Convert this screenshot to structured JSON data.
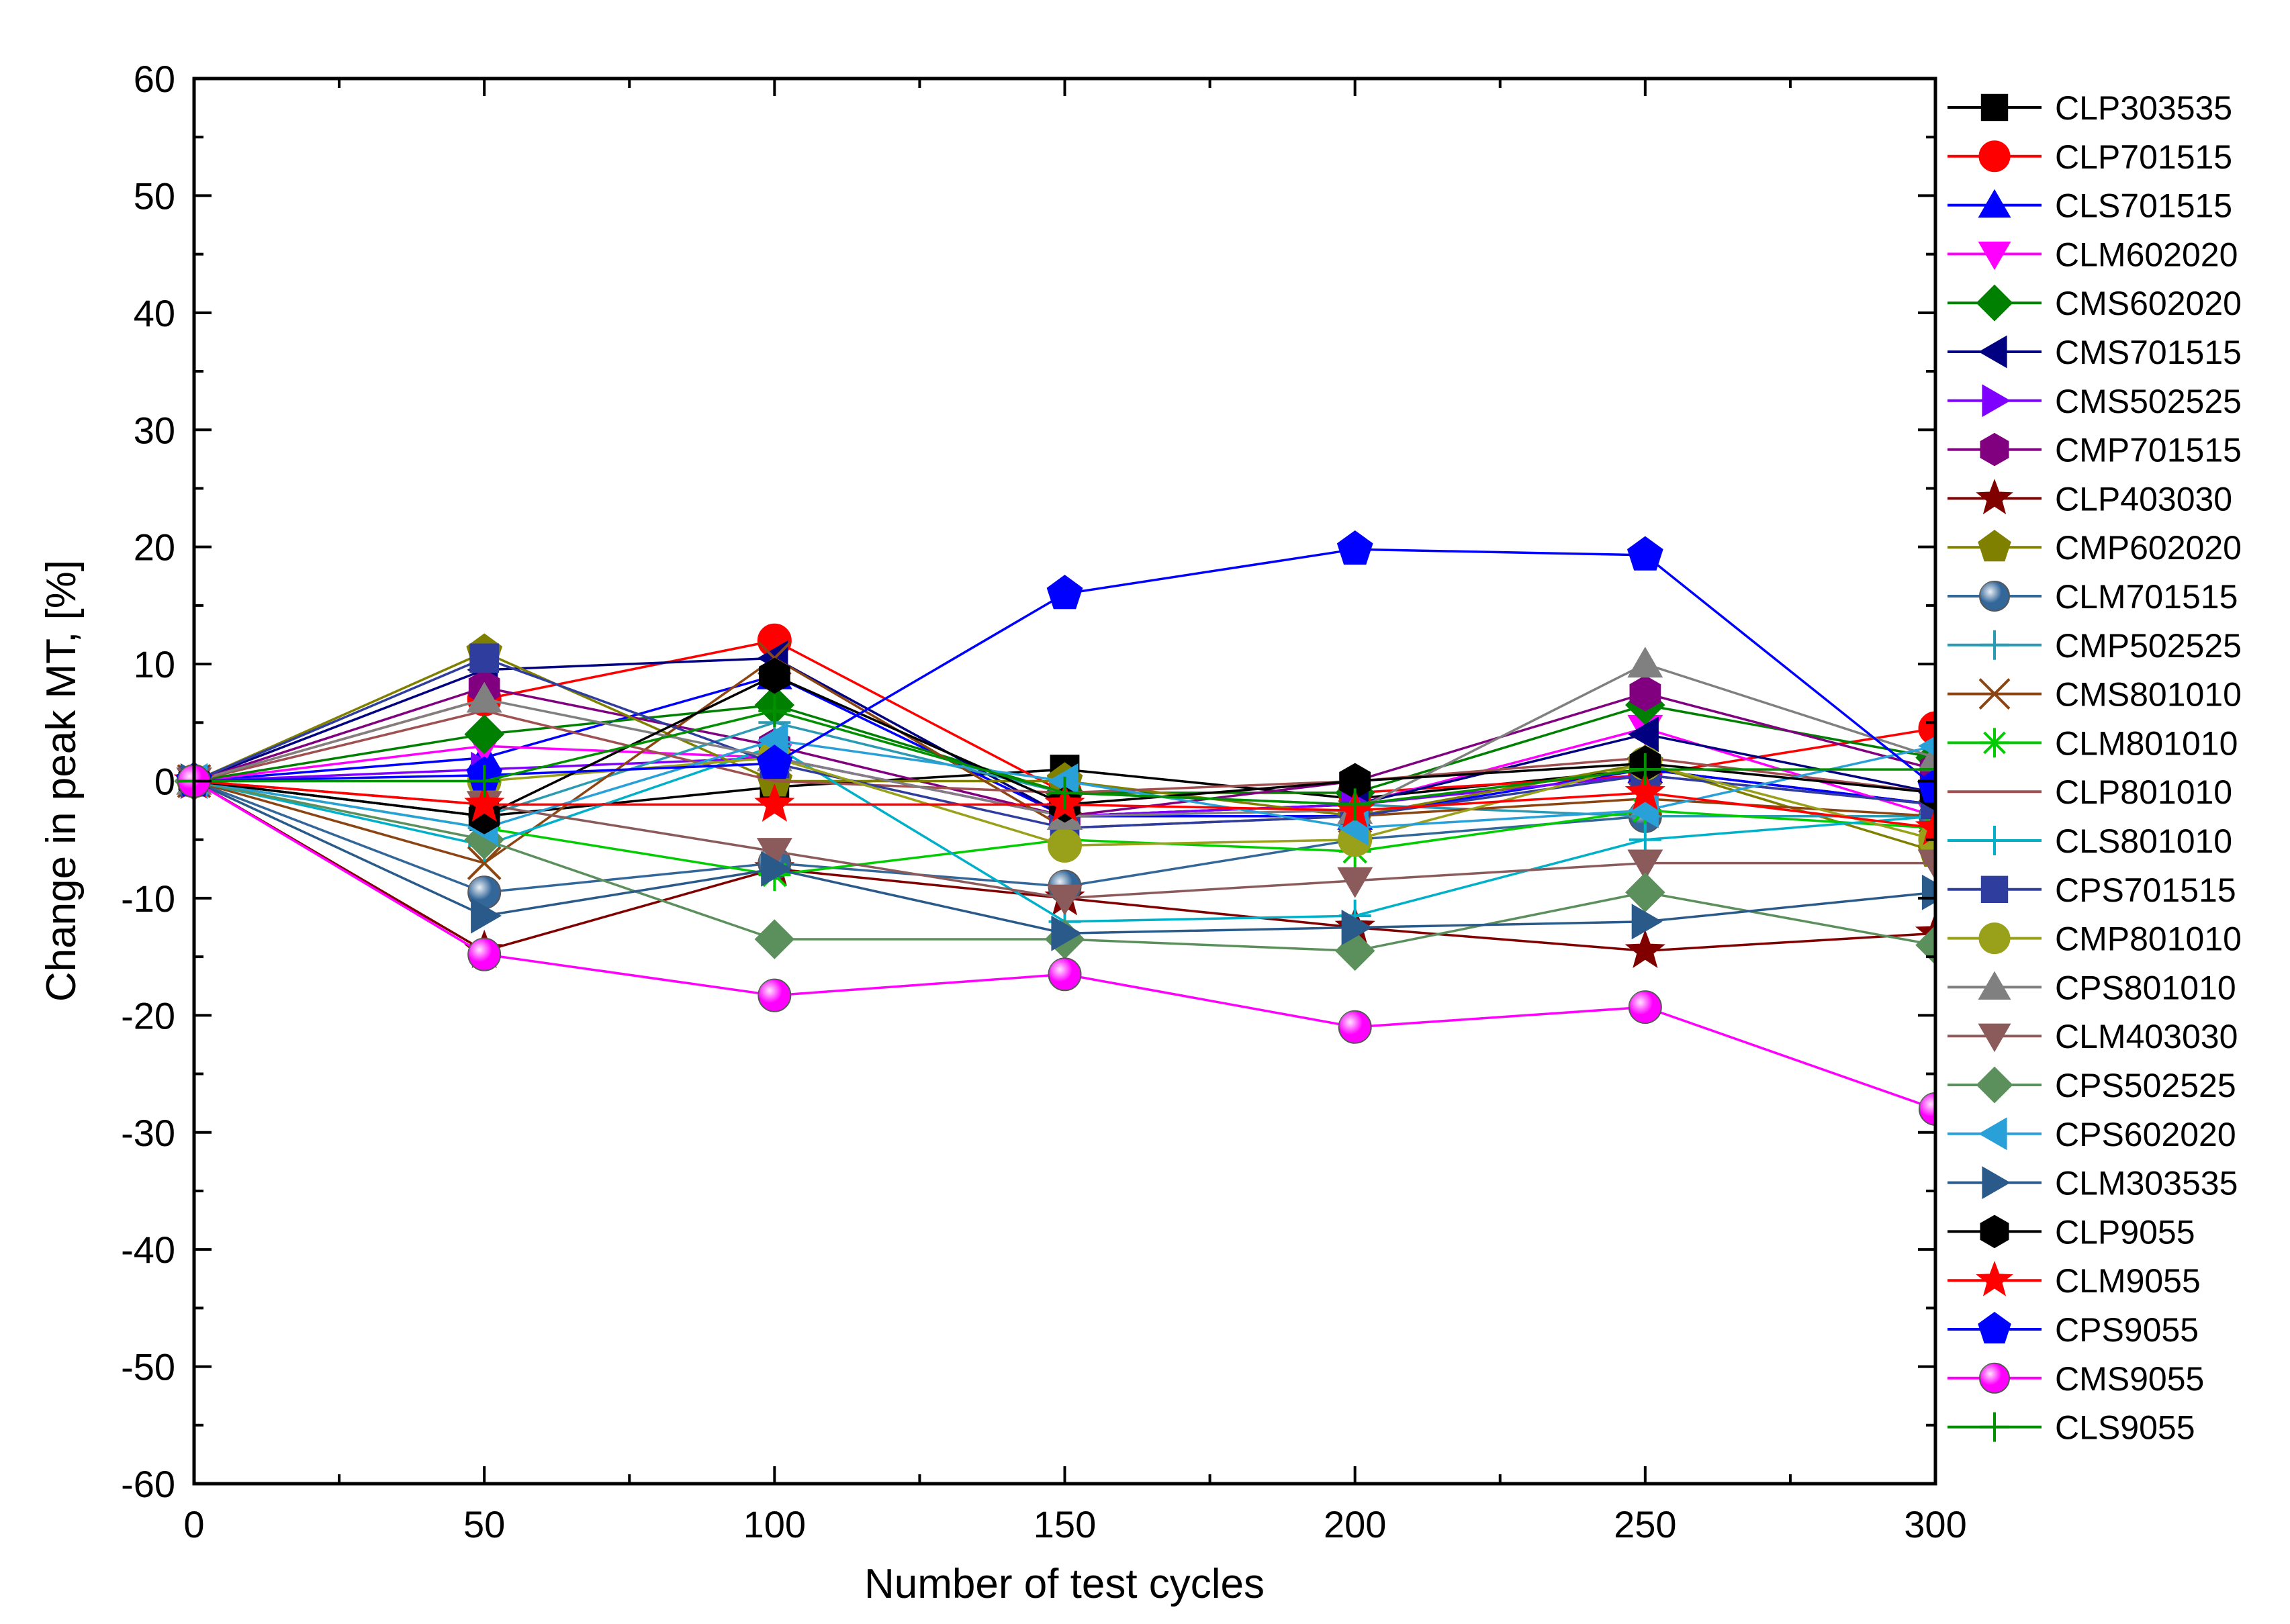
{
  "chart_data": {
    "type": "line",
    "title": "",
    "xlabel": "Number of test cycles",
    "ylabel": "Change in peak MT, [%]",
    "xlim": [
      0,
      300
    ],
    "ylim": [
      -60,
      60
    ],
    "xticks": [
      0,
      50,
      100,
      150,
      200,
      250,
      300
    ],
    "yticks": [
      -60,
      -50,
      -40,
      -30,
      -20,
      -10,
      0,
      10,
      20,
      30,
      40,
      50,
      60
    ],
    "x": [
      0,
      50,
      100,
      150,
      200,
      250,
      300
    ],
    "grid": false,
    "legend_position": "right",
    "series": [
      {
        "name": "CLP303535",
        "color": "#000000",
        "marker": "square",
        "values": [
          0,
          -3,
          -0.5,
          1,
          -1.5,
          1,
          -2
        ]
      },
      {
        "name": "CLP701515",
        "color": "#ff0000",
        "marker": "circle",
        "values": [
          0,
          7,
          12,
          -1,
          -1,
          0.5,
          4.5
        ]
      },
      {
        "name": "CLS701515",
        "color": "#0000ff",
        "marker": "triangle-up",
        "values": [
          0,
          2,
          9,
          -3,
          -3,
          1,
          -2
        ]
      },
      {
        "name": "CLM602020",
        "color": "#ff00ff",
        "marker": "triangle-down",
        "values": [
          0,
          3,
          2,
          -3,
          -2,
          4.5,
          -3
        ]
      },
      {
        "name": "CMS602020",
        "color": "#008000",
        "marker": "diamond",
        "values": [
          0,
          4,
          6.5,
          -1,
          -1,
          6.5,
          2
        ]
      },
      {
        "name": "CMS701515",
        "color": "#000080",
        "marker": "triangle-left",
        "values": [
          0,
          9.5,
          10.5,
          -3,
          -2,
          4,
          -1
        ]
      },
      {
        "name": "CMS502525",
        "color": "#8000ff",
        "marker": "triangle-right",
        "values": [
          0,
          1,
          2,
          -3,
          -2,
          0.5,
          -2
        ]
      },
      {
        "name": "CMP701515",
        "color": "#800080",
        "marker": "hexagon",
        "values": [
          0,
          8,
          3,
          -3,
          0,
          7.5,
          1
        ]
      },
      {
        "name": "CLP403030",
        "color": "#800000",
        "marker": "star",
        "values": [
          0,
          -14.5,
          -7.5,
          -10,
          -12.5,
          -14.5,
          -13
        ]
      },
      {
        "name": "CMP602020",
        "color": "#808000",
        "marker": "pentagon",
        "values": [
          0,
          11,
          0,
          0,
          -3,
          1.5,
          -6
        ]
      },
      {
        "name": "CLM701515",
        "color": "#336699",
        "marker": "sphere",
        "values": [
          0,
          -9.5,
          -7,
          -9,
          -5,
          -3,
          -3
        ]
      },
      {
        "name": "CMP502525",
        "color": "#2b9bb3",
        "marker": "plus",
        "values": [
          0,
          -3,
          5,
          -1,
          -2,
          -3,
          -3
        ]
      },
      {
        "name": "CMS801010",
        "color": "#8b4513",
        "marker": "x",
        "values": [
          0,
          -7,
          10.5,
          -4,
          -3,
          -1.5,
          -3
        ]
      },
      {
        "name": "CLM801010",
        "color": "#00cc00",
        "marker": "asterisk",
        "values": [
          0,
          -4,
          -8,
          -5,
          -6,
          -2.5,
          -4
        ]
      },
      {
        "name": "CLP801010",
        "color": "#a05050",
        "marker": "dash",
        "values": [
          0,
          6,
          0,
          -1,
          0,
          2,
          -1
        ]
      },
      {
        "name": "CLS801010",
        "color": "#00b0c8",
        "marker": "plus",
        "values": [
          0,
          -5.5,
          3,
          -12,
          -11.5,
          -5,
          -3
        ]
      },
      {
        "name": "CPS701515",
        "color": "#2f3e9e",
        "marker": "square",
        "values": [
          0,
          10.5,
          1.5,
          -4,
          -3,
          0.5,
          -2
        ]
      },
      {
        "name": "CMP801010",
        "color": "#99a01a",
        "marker": "circle",
        "values": [
          0,
          0,
          2,
          -5.5,
          -5,
          1.5,
          -5
        ]
      },
      {
        "name": "CPS801010",
        "color": "#808080",
        "marker": "triangle-up",
        "values": [
          0,
          7,
          2,
          -3,
          -2.5,
          10,
          2
        ]
      },
      {
        "name": "CLM403030",
        "color": "#8b5a5a",
        "marker": "triangle-down",
        "values": [
          0,
          -2,
          -6,
          -10,
          -8.5,
          -7,
          -7
        ]
      },
      {
        "name": "CPS502525",
        "color": "#5b8f5b",
        "marker": "diamond",
        "values": [
          0,
          -5,
          -13.5,
          -13.5,
          -14.5,
          -9.5,
          -14
        ]
      },
      {
        "name": "CPS602020",
        "color": "#29a0d8",
        "marker": "triangle-left",
        "values": [
          0,
          -4,
          3.5,
          0,
          -4,
          -2.5,
          3
        ]
      },
      {
        "name": "CLM303535",
        "color": "#2a5a8a",
        "marker": "triangle-right",
        "values": [
          0,
          -11.5,
          -7.5,
          -13,
          -12.5,
          -12,
          -9.5
        ]
      },
      {
        "name": "CLP9055",
        "color": "#000000",
        "marker": "hexagon",
        "values": [
          0,
          -3,
          9,
          -2,
          0,
          1.5,
          -1
        ]
      },
      {
        "name": "CLM9055",
        "color": "#ff0000",
        "marker": "star",
        "values": [
          0,
          -2,
          -2,
          -2,
          -2.5,
          -1,
          -4
        ]
      },
      {
        "name": "CPS9055",
        "color": "#0000ff",
        "marker": "pentagon",
        "values": [
          0,
          0.5,
          1.5,
          16,
          19.8,
          19.3,
          -0.5
        ]
      },
      {
        "name": "CMS9055",
        "color": "#ff00ff",
        "marker": "sphere",
        "values": [
          0,
          -14.8,
          -18.3,
          -16.5,
          -21,
          -19.3,
          -28
        ]
      },
      {
        "name": "CLS9055",
        "color": "#009000",
        "marker": "plus",
        "values": [
          0,
          0,
          6,
          -1,
          -2,
          1,
          1
        ]
      }
    ]
  }
}
